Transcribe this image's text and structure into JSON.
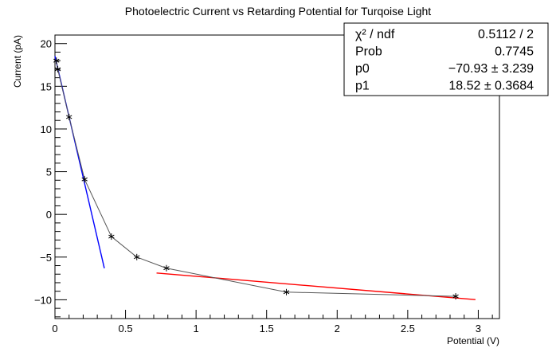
{
  "chart_data": {
    "type": "scatter",
    "title": "Photoelectric Current vs Retarding Potential for Turqoise Light",
    "xlabel": "Potential (V)",
    "ylabel": "Current (pA)",
    "xlim": [
      0,
      3.15
    ],
    "ylim": [
      -12.2,
      21
    ],
    "xticks": [
      0,
      0.5,
      1,
      1.5,
      2,
      2.5,
      3
    ],
    "xtick_labels": [
      "0",
      "0.5",
      "1",
      "1.5",
      "2",
      "2.5",
      "3"
    ],
    "yticks": [
      -10,
      -5,
      0,
      5,
      10,
      15,
      20
    ],
    "ytick_labels": [
      "−10",
      "−5",
      "0",
      "5",
      "10",
      "15",
      "20"
    ],
    "series": [
      {
        "marker": "asterisk",
        "line": true,
        "color": "#555555",
        "x": [
          0.01,
          0.02,
          0.1,
          0.21,
          0.4,
          0.58,
          0.79,
          1.64,
          2.84
        ],
        "y": [
          18.0,
          17.0,
          11.4,
          4.1,
          -2.6,
          -5.0,
          -6.3,
          -9.1,
          -9.6
        ]
      }
    ],
    "fits": [
      {
        "color": "#0000ff",
        "slope": -70.93,
        "intercept": 18.52,
        "xrange": [
          0.0,
          0.35
        ]
      },
      {
        "color": "#ff0000",
        "slope": -1.38,
        "intercept": -5.87,
        "xrange": [
          0.72,
          2.98
        ]
      }
    ],
    "stats_box": {
      "position": "top-right",
      "rows": [
        {
          "label": "χ² / ndf",
          "value": "0.5112 / 2"
        },
        {
          "label": "Prob",
          "value": "0.7745"
        },
        {
          "label": "p0",
          "value": "−70.93 ± 3.239"
        },
        {
          "label": "p1",
          "value": "18.52 ± 0.3684"
        }
      ]
    }
  }
}
